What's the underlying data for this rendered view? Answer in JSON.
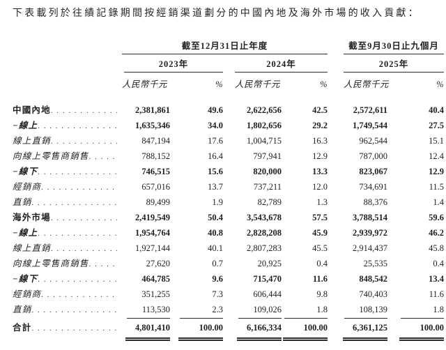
{
  "page": {
    "title": "下表載列於往績記錄期間按經銷渠道劃分的中國內地及海外市場的收入貢獻："
  },
  "table": {
    "period_groups": [
      {
        "label": "截至12月31日止年度",
        "years": [
          "2023年",
          "2024年"
        ]
      },
      {
        "label": "截至9月30日止九個月",
        "years": [
          "2025年"
        ]
      }
    ],
    "unit_label": "人民幣千元",
    "pct_label": "%",
    "rows": [
      {
        "label": "中國內地",
        "style": "section",
        "values": [
          "2,381,861",
          "49.6",
          "2,622,656",
          "42.5",
          "2,572,611",
          "40.4"
        ]
      },
      {
        "label": "−線上",
        "style": "channel",
        "values": [
          "1,635,346",
          "34.0",
          "1,802,656",
          "29.2",
          "1,749,544",
          "27.5"
        ]
      },
      {
        "label": "線上直銷",
        "style": "sub",
        "values": [
          "847,194",
          "17.6",
          "1,004,715",
          "16.3",
          "962,544",
          "15.1"
        ]
      },
      {
        "label": "向線上零售商銷售",
        "style": "sub",
        "values": [
          "788,152",
          "16.4",
          "797,941",
          "12.9",
          "787,000",
          "12.4"
        ]
      },
      {
        "label": "−線下",
        "style": "channel",
        "values": [
          "746,515",
          "15.6",
          "820,000",
          "13.3",
          "823,067",
          "12.9"
        ]
      },
      {
        "label": "經銷商",
        "style": "sub",
        "values": [
          "657,016",
          "13.7",
          "737,211",
          "12.0",
          "734,691",
          "11.5"
        ]
      },
      {
        "label": "直銷",
        "style": "sub",
        "values": [
          "89,499",
          "1.9",
          "82,789",
          "1.3",
          "88,376",
          "1.4"
        ]
      },
      {
        "label": "海外市場",
        "style": "section",
        "values": [
          "2,419,549",
          "50.4",
          "3,543,678",
          "57.5",
          "3,788,514",
          "59.6"
        ]
      },
      {
        "label": "−線上",
        "style": "channel",
        "values": [
          "1,954,764",
          "40.8",
          "2,828,208",
          "45.9",
          "2,939,972",
          "46.2"
        ]
      },
      {
        "label": "線上直銷",
        "style": "sub",
        "values": [
          "1,927,144",
          "40.1",
          "2,807,283",
          "45.5",
          "2,914,437",
          "45.8"
        ]
      },
      {
        "label": "向線上零售商銷售",
        "style": "sub",
        "values": [
          "27,620",
          "0.7",
          "20,925",
          "0.4",
          "25,535",
          "0.4"
        ]
      },
      {
        "label": "−線下",
        "style": "channel",
        "values": [
          "464,785",
          "9.6",
          "715,470",
          "11.6",
          "848,542",
          "13.4"
        ]
      },
      {
        "label": "經銷商",
        "style": "sub",
        "values": [
          "351,255",
          "7.3",
          "606,444",
          "9.8",
          "740,403",
          "11.6"
        ]
      },
      {
        "label": "直銷",
        "style": "sub",
        "rule_below": true,
        "values": [
          "113,530",
          "2.3",
          "109,026",
          "1.8",
          "108,139",
          "1.8"
        ]
      },
      {
        "label": "合計",
        "style": "total",
        "values": [
          "4,801,410",
          "100.00",
          "6,166,334",
          "100.00",
          "6,361,125",
          "100.00"
        ]
      }
    ]
  },
  "colors": {
    "text": "#1f1f1f",
    "rule": "#2a2a2a",
    "background": "#ffffff"
  }
}
